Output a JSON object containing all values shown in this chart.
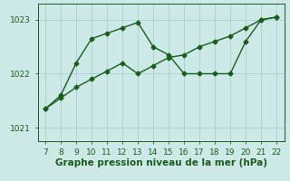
{
  "line1_x": [
    7,
    8,
    9,
    10,
    11,
    12,
    13,
    14,
    15,
    16,
    17,
    18,
    19,
    20,
    21,
    22
  ],
  "line1_y": [
    1021.35,
    1021.6,
    1022.2,
    1022.65,
    1022.75,
    1022.85,
    1022.95,
    1022.5,
    1022.35,
    1022.0,
    1022.0,
    1022.0,
    1022.0,
    1022.6,
    1023.0,
    1023.05
  ],
  "line2_x": [
    7,
    8,
    9,
    10,
    11,
    12,
    13,
    14,
    15,
    16,
    17,
    18,
    19,
    20,
    21,
    22
  ],
  "line2_y": [
    1021.35,
    1021.55,
    1021.75,
    1021.9,
    1022.05,
    1022.2,
    1022.0,
    1022.15,
    1022.3,
    1022.35,
    1022.5,
    1022.6,
    1022.7,
    1022.85,
    1023.0,
    1023.05
  ],
  "color": "#1a5c1a",
  "bg_color": "#cce9e8",
  "grid_color": "#aacfcc",
  "xlabel": "Graphe pression niveau de la mer (hPa)",
  "xlim": [
    6.5,
    22.5
  ],
  "ylim": [
    1020.75,
    1023.3
  ],
  "yticks": [
    1021,
    1022,
    1023
  ],
  "xticks": [
    7,
    8,
    9,
    10,
    11,
    12,
    13,
    14,
    15,
    16,
    17,
    18,
    19,
    20,
    21,
    22
  ],
  "marker": "D",
  "markersize": 2.5,
  "linewidth": 1.0,
  "xlabel_fontsize": 7.5,
  "tick_fontsize": 6.5
}
